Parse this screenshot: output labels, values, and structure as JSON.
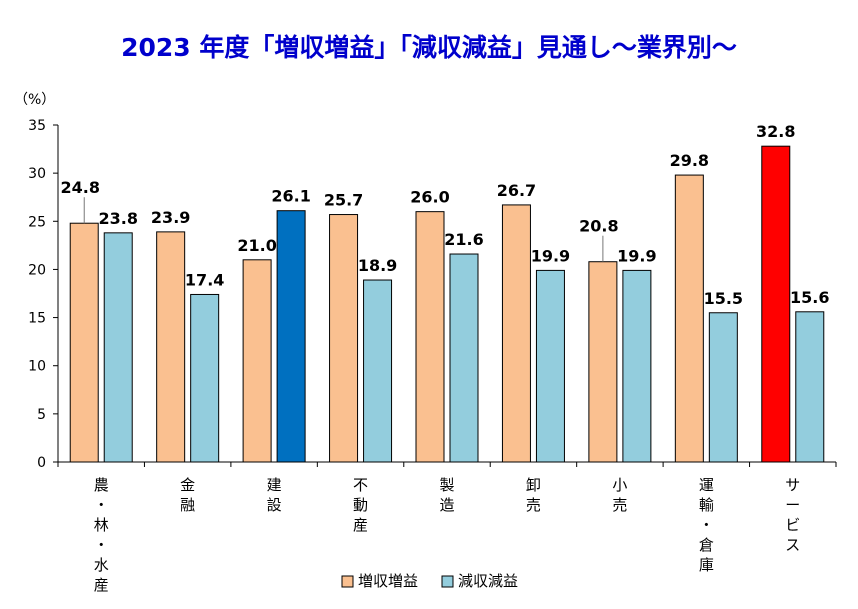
{
  "chart_data": {
    "type": "bar",
    "title": "2023 年度「増収増益」「減収減益」見通し～業界別～",
    "ylabel_unit": "（%）",
    "ylim": [
      0,
      35
    ],
    "yticks": [
      0,
      5,
      10,
      15,
      20,
      25,
      30,
      35
    ],
    "grid": false,
    "legend_position": "bottom",
    "categories": [
      "農・林・水産",
      "金融",
      "建設",
      "不動産",
      "製造",
      "卸売",
      "小売",
      "運輸・倉庫",
      "サービス"
    ],
    "series": [
      {
        "name": "増収増益",
        "color": "#fac090",
        "values": [
          24.8,
          23.9,
          21.0,
          25.7,
          26.0,
          26.7,
          20.8,
          29.8,
          32.8
        ],
        "value_labels": [
          "24.8",
          "23.9",
          "21.0",
          "25.7",
          "26.0",
          "26.7",
          "20.8",
          "29.8",
          "32.8"
        ]
      },
      {
        "name": "減収減益",
        "color": "#93cddd",
        "values": [
          23.8,
          17.4,
          26.1,
          18.9,
          21.6,
          19.9,
          19.9,
          15.5,
          15.6
        ],
        "value_labels": [
          "23.8",
          "17.4",
          "26.1",
          "18.9",
          "21.6",
          "19.9",
          "19.9",
          "15.5",
          "15.6"
        ]
      }
    ],
    "highlights": [
      {
        "series": 1,
        "category": 2,
        "color": "#0070c0"
      },
      {
        "series": 0,
        "category": 8,
        "color": "#ff0000"
      }
    ]
  }
}
